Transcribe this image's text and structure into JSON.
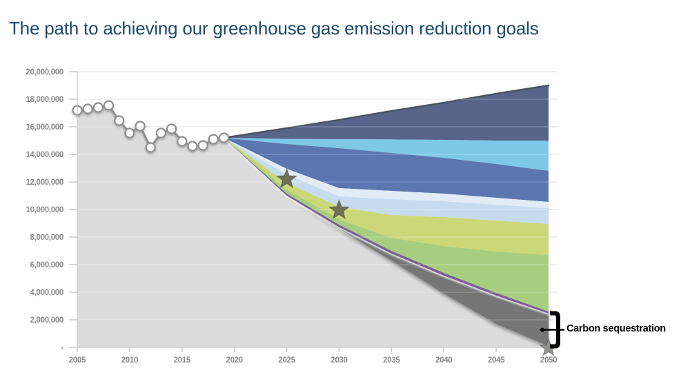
{
  "header": {
    "title": "The path to achieving our greenhouse gas emission reduction goals",
    "title_color": "#1b4a70"
  },
  "annotation": {
    "label": "Carbon sequestration",
    "color": "#000000"
  },
  "palette": {
    "axis_text": "#8a8a8a",
    "gridline": "#d9d9d9",
    "axis_line": "#c8c8c8",
    "historical_line": "#8f8f8f",
    "bau_top_line": "#4d525f",
    "star_fill": "#6e7158",
    "star_fill_2050": "#92928c"
  },
  "chart_data": {
    "type": "area",
    "title": "The path to achieving our greenhouse gas emission reduction goals",
    "xlabel": "",
    "ylabel": "",
    "x_axis": {
      "tick_years": [
        2005,
        2010,
        2015,
        2020,
        2025,
        2030,
        2035,
        2040,
        2045,
        2050
      ],
      "range": [
        2005,
        2050
      ]
    },
    "y_axis": {
      "tick_values_millions": [
        20,
        18,
        16,
        14,
        12,
        10,
        8,
        6,
        4,
        2,
        0
      ],
      "tick_labels": [
        "20,000,000",
        "18,000,000",
        "16,000,000",
        "14,000,000",
        "12,000,000",
        "10,000,000",
        "8,000,000",
        "6,000,000",
        "4,000,000",
        "2,000,000",
        "-"
      ],
      "range_millions": [
        0,
        20
      ],
      "grid": true
    },
    "historical": {
      "name": "historical-emissions",
      "years": [
        2005,
        2006,
        2007,
        2008,
        2009,
        2010,
        2011,
        2012,
        2013,
        2014,
        2015,
        2016,
        2017,
        2018,
        2019
      ],
      "values_millions": [
        17.2,
        17.3,
        17.4,
        17.55,
        16.45,
        15.55,
        16.05,
        14.5,
        15.55,
        15.85,
        14.95,
        14.6,
        14.65,
        15.1,
        15.2
      ],
      "line_color": "#8f8f8f",
      "marker": "white-circle"
    },
    "projection": {
      "years": [
        2019,
        2025,
        2030,
        2035,
        2040,
        2045,
        2050
      ],
      "top_boundary_millions": [
        15.2,
        15.9,
        16.5,
        17.15,
        17.75,
        18.4,
        19.0
      ],
      "bands": [
        {
          "name": "slate-top-wedge",
          "color": "#59648a",
          "bottom_millions": [
            15.2,
            15.12,
            15.1,
            15.08,
            15.05,
            15.0,
            15.0
          ]
        },
        {
          "name": "sky-blue-wedge",
          "color": "#7ec8e8",
          "bottom_millions": [
            15.2,
            14.75,
            14.45,
            14.1,
            13.75,
            13.3,
            12.8
          ]
        },
        {
          "name": "medium-blue-wedge",
          "color": "#5b76b1",
          "bottom_millions": [
            15.2,
            12.95,
            11.55,
            11.35,
            11.15,
            10.85,
            10.55
          ]
        },
        {
          "name": "lightest-blue-wedge",
          "color": "#e2ecf6",
          "bottom_millions": [
            15.2,
            12.55,
            10.95,
            10.75,
            10.6,
            10.35,
            10.1
          ]
        },
        {
          "name": "pale-blue-wedge",
          "color": "#c6dcee",
          "bottom_millions": [
            15.2,
            11.95,
            10.2,
            9.6,
            9.45,
            9.2,
            8.95
          ]
        },
        {
          "name": "yellow-green-wedge",
          "color": "#ccd878",
          "bottom_millions": [
            15.2,
            11.45,
            9.3,
            7.95,
            7.35,
            6.95,
            6.7
          ]
        },
        {
          "name": "green-wedge",
          "color": "#a7ce7e",
          "bottom_millions": [
            15.2,
            11.15,
            8.9,
            7.0,
            5.4,
            3.95,
            2.6
          ]
        },
        {
          "name": "purple-pathway-band",
          "color": "#7c5f95",
          "bottom_millions": [
            15.2,
            11.0,
            8.72,
            6.8,
            5.2,
            3.75,
            2.45
          ]
        },
        {
          "name": "carbon-sequestration-wedge",
          "color": "#767676",
          "bottom_millions": [
            15.2,
            11.0,
            8.6,
            6.3,
            3.9,
            1.7,
            0.1
          ]
        }
      ]
    },
    "remaining_area": {
      "name": "remaining-emissions-area",
      "color": "#dcdcdc"
    },
    "stars": [
      {
        "year": 2025,
        "value_millions": 12.2,
        "radius": 15,
        "fill": "#6e7158"
      },
      {
        "year": 2030,
        "value_millions": 9.95,
        "radius": 15,
        "fill": "#6e7158"
      },
      {
        "year": 2050,
        "value_millions": -0.05,
        "radius": 13,
        "fill": "#92928c"
      }
    ],
    "annotations": [
      {
        "text": "Carbon sequestration",
        "year": 2050,
        "points_to": "carbon-sequestration-wedge"
      }
    ],
    "legend": false
  }
}
